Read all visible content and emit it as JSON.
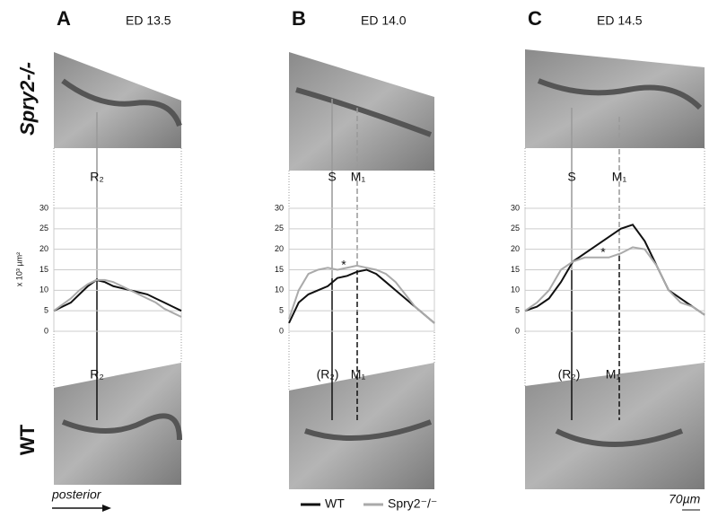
{
  "chart_data": [
    {
      "type": "line",
      "label": "A",
      "title": "ED 13.5",
      "y_label": "x 10³ µm²",
      "ylim": [
        0,
        30
      ],
      "yticks": [
        0,
        5,
        10,
        15,
        20,
        25,
        30
      ],
      "grid": true,
      "series": [
        {
          "color": "#111111",
          "values": [
            5,
            6,
            7,
            9,
            11,
            12.5,
            12,
            11,
            10.5,
            10,
            9.5,
            9,
            8,
            7,
            6,
            5
          ]
        },
        {
          "color": "#aaaaaa",
          "values": [
            5,
            6.5,
            8,
            10,
            11.5,
            12.5,
            12.5,
            12,
            11,
            10,
            9,
            8,
            7,
            5.5,
            4.5,
            3.5
          ]
        }
      ],
      "annotations": [
        "R₂",
        "R₂"
      ]
    },
    {
      "type": "line",
      "label": "B",
      "title": "ED 14.0",
      "ylim": [
        0,
        30
      ],
      "yticks": [
        0,
        5,
        10,
        15,
        20,
        25,
        30
      ],
      "grid": true,
      "series": [
        {
          "name": "WT",
          "color": "#111111",
          "values": [
            2,
            7,
            9,
            10,
            11,
            13,
            13.5,
            14.5,
            15,
            14,
            12,
            10,
            8,
            6,
            4,
            2
          ]
        },
        {
          "name": "Spry2⁻/⁻",
          "color": "#aaaaaa",
          "values": [
            3,
            10,
            14,
            15,
            15.5,
            15,
            15.5,
            16,
            15.5,
            15,
            14,
            12,
            9,
            6,
            4,
            2
          ]
        }
      ],
      "annotations": [
        "S",
        "M₁",
        "*",
        "(R₂)",
        "M₁"
      ]
    },
    {
      "type": "line",
      "label": "C",
      "title": "ED 14.5",
      "ylim": [
        0,
        30
      ],
      "yticks": [
        0,
        5,
        10,
        15,
        20,
        25,
        30
      ],
      "grid": true,
      "series": [
        {
          "color": "#111111",
          "values": [
            5,
            6,
            8,
            12,
            17,
            19,
            21,
            23,
            25,
            26,
            22,
            16,
            10,
            8,
            6,
            4
          ]
        },
        {
          "color": "#aaaaaa",
          "values": [
            5,
            7,
            10,
            15,
            17,
            18,
            18,
            18,
            19,
            20.5,
            20,
            16,
            10,
            7,
            6,
            4
          ]
        }
      ],
      "annotations": [
        "S",
        "M₁",
        "*",
        "(R₂)",
        "M₁"
      ]
    }
  ],
  "row_labels": [
    "Spry2-/-",
    "WT"
  ],
  "footer": {
    "direction": "posterior",
    "scale": "70µm"
  }
}
